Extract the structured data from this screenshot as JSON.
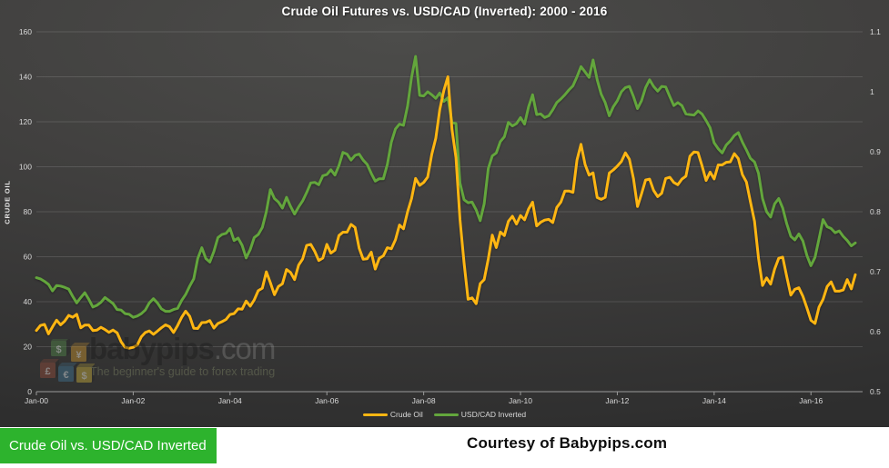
{
  "title": "Crude Oil Futures vs. USD/CAD (Inverted): 2000 - 2016",
  "left_axis_title": "CRUDE OIL",
  "legend": [
    {
      "label": "Crude Oil",
      "color": "#FFB612"
    },
    {
      "label": "USD/CAD Inverted",
      "color": "#63A63C"
    }
  ],
  "watermark": {
    "brand": "babypips",
    "suffix": ".com",
    "tagline": "The beginner's guide to forex trading",
    "block_symbols": [
      "$",
      "¥",
      "£",
      "€",
      "$"
    ]
  },
  "footer": {
    "badge_label": "Crude Oil vs. USD/CAD Inverted",
    "badge_color": "#2DB32D",
    "courtesy": "Courtesy of Babypips.com"
  },
  "colors": {
    "background_dark": "#3f3f3e",
    "gridline": "rgba(255,255,255,0.13)",
    "axis_line": "#9a9a9a",
    "tick_text": "#d9d9d9",
    "crude_oil_line": "#FFB612",
    "usdcad_line": "#63A63C"
  },
  "chart_data": {
    "type": "line",
    "title": "Crude Oil Futures vs. USD/CAD (Inverted): 2000 - 2016",
    "interval": "monthly",
    "x_start": "Jan-2000",
    "x_end": "Dec-2016",
    "x_tick_labels": [
      "Jan-00",
      "Jan-02",
      "Jan-04",
      "Jan-06",
      "Jan-08",
      "Jan-10",
      "Jan-12",
      "Jan-14",
      "Jan-16"
    ],
    "x_tick_every_n_points": 24,
    "left_ylabel": "CRUDE OIL",
    "left_ylim": [
      0,
      160
    ],
    "left_ticks": [
      0,
      20,
      40,
      60,
      80,
      100,
      120,
      140,
      160
    ],
    "right_ylim": [
      0.5,
      1.1
    ],
    "right_ticks": [
      0.5,
      0.6,
      0.7,
      0.8,
      0.9,
      1.0,
      1.1
    ],
    "grid": "horizontal-left-axis",
    "legend_position": "bottom-center",
    "series": [
      {
        "name": "USD/CAD Inverted",
        "axis": "right",
        "color": "#63A63C",
        "values": [
          0.69,
          0.688,
          0.684,
          0.679,
          0.668,
          0.677,
          0.676,
          0.674,
          0.671,
          0.659,
          0.648,
          0.657,
          0.665,
          0.654,
          0.641,
          0.644,
          0.649,
          0.657,
          0.652,
          0.647,
          0.637,
          0.636,
          0.63,
          0.629,
          0.624,
          0.626,
          0.63,
          0.636,
          0.648,
          0.655,
          0.648,
          0.638,
          0.634,
          0.634,
          0.637,
          0.639,
          0.652,
          0.662,
          0.676,
          0.688,
          0.722,
          0.74,
          0.722,
          0.716,
          0.734,
          0.757,
          0.762,
          0.764,
          0.772,
          0.752,
          0.756,
          0.744,
          0.723,
          0.737,
          0.757,
          0.762,
          0.774,
          0.8,
          0.837,
          0.822,
          0.816,
          0.806,
          0.824,
          0.809,
          0.796,
          0.808,
          0.818,
          0.832,
          0.848,
          0.849,
          0.845,
          0.86,
          0.862,
          0.87,
          0.861,
          0.877,
          0.899,
          0.896,
          0.886,
          0.894,
          0.896,
          0.886,
          0.879,
          0.864,
          0.851,
          0.855,
          0.855,
          0.879,
          0.916,
          0.938,
          0.946,
          0.944,
          0.976,
          1.024,
          1.059,
          0.994,
          0.993,
          1.0,
          0.995,
          0.989,
          0.998,
          0.984,
          0.99,
          0.949,
          0.947,
          0.848,
          0.82,
          0.815,
          0.816,
          0.803,
          0.785,
          0.813,
          0.872,
          0.893,
          0.898,
          0.917,
          0.925,
          0.949,
          0.943,
          0.947,
          0.957,
          0.946,
          0.975,
          0.995,
          0.962,
          0.963,
          0.957,
          0.96,
          0.97,
          0.982,
          0.988,
          0.995,
          1.003,
          1.01,
          1.025,
          1.042,
          1.033,
          1.024,
          1.053,
          1.02,
          0.996,
          0.982,
          0.96,
          0.975,
          0.985,
          1.0,
          1.007,
          1.009,
          0.992,
          0.972,
          0.985,
          1.007,
          1.02,
          1.009,
          1.001,
          1.009,
          1.008,
          0.992,
          0.977,
          0.982,
          0.977,
          0.963,
          0.962,
          0.961,
          0.968,
          0.963,
          0.952,
          0.94,
          0.915,
          0.905,
          0.898,
          0.911,
          0.918,
          0.927,
          0.932,
          0.916,
          0.903,
          0.889,
          0.883,
          0.864,
          0.822,
          0.8,
          0.791,
          0.813,
          0.822,
          0.806,
          0.78,
          0.759,
          0.753,
          0.763,
          0.751,
          0.727,
          0.71,
          0.724,
          0.755,
          0.787,
          0.775,
          0.772,
          0.765,
          0.768,
          0.759,
          0.752,
          0.743,
          0.748
        ]
      },
      {
        "name": "Crude Oil",
        "axis": "left",
        "color": "#FFB612",
        "values": [
          27.2,
          29.4,
          29.9,
          25.7,
          28.8,
          31.8,
          29.7,
          31.3,
          33.9,
          33.1,
          34.4,
          28.4,
          29.6,
          29.6,
          27.2,
          27.4,
          28.6,
          27.6,
          26.4,
          27.4,
          26.2,
          22.2,
          19.7,
          19.3,
          19.7,
          20.7,
          24.4,
          26.3,
          27.0,
          25.5,
          26.9,
          28.4,
          29.7,
          28.9,
          26.3,
          29.4,
          33.0,
          35.8,
          33.5,
          28.2,
          28.1,
          30.7,
          30.8,
          31.6,
          28.3,
          30.3,
          31.1,
          32.1,
          34.3,
          34.7,
          36.8,
          36.7,
          40.3,
          38.0,
          40.8,
          44.9,
          46.0,
          53.3,
          48.5,
          43.1,
          46.8,
          48.0,
          54.3,
          53.0,
          49.8,
          56.3,
          59.0,
          65.0,
          65.5,
          62.4,
          58.3,
          59.4,
          65.5,
          61.6,
          62.9,
          69.4,
          70.9,
          70.9,
          74.4,
          73.0,
          63.8,
          58.9,
          59.1,
          62.0,
          54.5,
          59.3,
          60.4,
          64.0,
          63.5,
          67.5,
          74.1,
          72.4,
          79.9,
          85.8,
          94.8,
          91.7,
          93.0,
          95.4,
          105.5,
          112.6,
          125.4,
          133.9,
          140.0,
          116.7,
          104.1,
          76.6,
          57.3,
          41.1,
          41.7,
          39.1,
          48.0,
          49.8,
          59.0,
          69.6,
          64.1,
          71.0,
          69.4,
          75.7,
          78.0,
          74.5,
          78.3,
          76.4,
          81.2,
          84.3,
          73.7,
          75.3,
          76.3,
          76.6,
          75.2,
          81.9,
          84.3,
          89.2,
          89.2,
          88.6,
          103.0,
          110.0,
          101.0,
          96.3,
          97.3,
          86.3,
          85.5,
          86.4,
          97.2,
          98.6,
          100.3,
          102.3,
          106.2,
          103.3,
          94.7,
          82.3,
          87.9,
          94.1,
          94.5,
          89.5,
          86.7,
          88.2,
          94.8,
          95.3,
          93.0,
          92.0,
          94.5,
          95.8,
          104.7,
          106.6,
          106.3,
          100.5,
          93.9,
          97.6,
          94.6,
          100.8,
          100.8,
          102.0,
          102.2,
          105.8,
          103.6,
          96.5,
          93.2,
          84.4,
          75.8,
          59.3,
          47.2,
          50.6,
          47.8,
          54.5,
          59.3,
          59.8,
          51.2,
          42.9,
          45.5,
          46.2,
          42.4,
          37.2,
          31.7,
          30.3,
          37.6,
          41.0,
          46.7,
          48.8,
          44.7,
          44.7,
          45.2,
          49.8,
          45.7,
          52.0
        ]
      }
    ]
  }
}
